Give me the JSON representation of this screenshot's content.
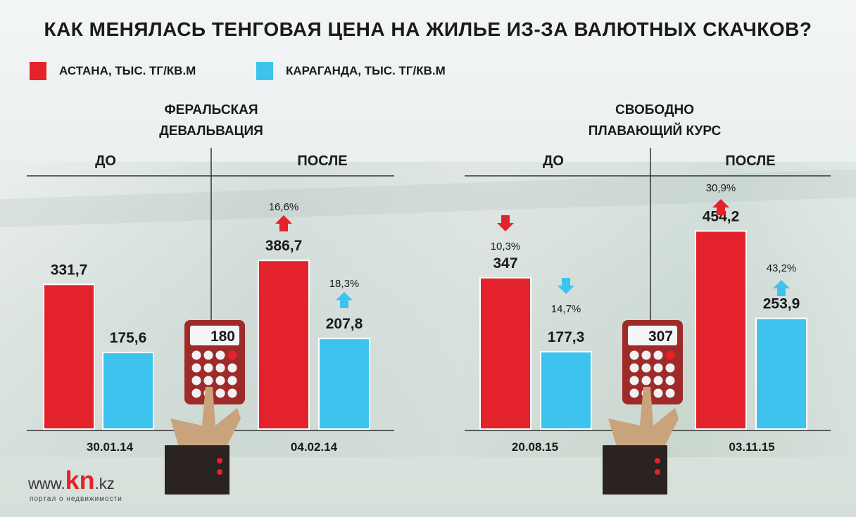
{
  "chart_data": {
    "type": "bar",
    "title": "КАК МЕНЯЛАСЬ ТЕНГОВАЯ ЦЕНА НА ЖИЛЬЕ ИЗ-ЗА ВАЛЮТНЫХ СКАЧКОВ?",
    "legend": [
      {
        "name": "АСТАНА, ТЫС. ТГ/КВ.М",
        "color": "#e3222b"
      },
      {
        "name": "КАРАГАНДА, ТЫС. ТГ/КВ.М",
        "color": "#3ec3ef"
      }
    ],
    "sections": [
      {
        "title_line1": "ФЕРАЛЬСКАЯ",
        "title_line2": "ДЕВАЛЬВАЦИЯ",
        "before_label": "ДО",
        "after_label": "ПОСЛЕ",
        "calculator": "180",
        "before": {
          "date": "30.01.14",
          "astana": 331.7,
          "astana_label": "331,7",
          "karaganda": 175.6,
          "karaganda_label": "175,6"
        },
        "after": {
          "date": "04.02.14",
          "astana": 386.7,
          "astana_label": "386,7",
          "astana_change": "16,6%",
          "karaganda": 207.8,
          "karaganda_label": "207,8",
          "karaganda_change": "18,3%"
        }
      },
      {
        "title_line1": "СВОБОДНО",
        "title_line2": "ПЛАВАЮЩИЙ КУРС",
        "before_label": "ДО",
        "after_label": "ПОСЛЕ",
        "calculator": "307",
        "before": {
          "date": "20.08.15",
          "astana": 347,
          "astana_label": "347",
          "astana_change": "10,3%",
          "karaganda": 177.3,
          "karaganda_label": "177,3",
          "karaganda_change": "14,7%"
        },
        "after": {
          "date": "03.11.15",
          "astana": 454.2,
          "astana_label": "454,2",
          "astana_change": "30,9%",
          "karaganda": 253.9,
          "karaganda_label": "253,9",
          "karaganda_change": "43,2%"
        }
      }
    ]
  },
  "logo": {
    "www": "www.",
    "brand": "kn",
    "tld": ".kz",
    "tagline": "портал о недвижимости"
  }
}
